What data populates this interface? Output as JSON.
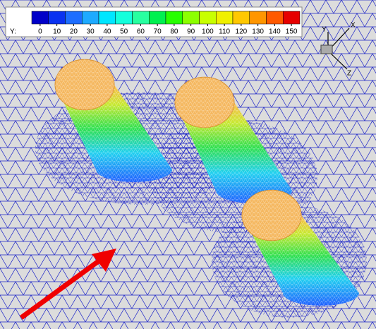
{
  "colorbar": {
    "label": "Y:",
    "ticks": [
      0,
      10,
      20,
      30,
      40,
      50,
      60,
      70,
      80,
      90,
      100,
      110,
      120,
      130,
      140,
      150
    ],
    "colors": [
      "#0000c8",
      "#0a32f0",
      "#1e6eff",
      "#1eaaff",
      "#00e6ff",
      "#14ffdc",
      "#28ffa0",
      "#00f050",
      "#28ff00",
      "#8cff00",
      "#c8ff00",
      "#f0f000",
      "#ffc800",
      "#ff9600",
      "#ff5a00",
      "#e60000"
    ]
  },
  "triad": {
    "x": "X",
    "y": "Y",
    "z": "Z"
  }
}
